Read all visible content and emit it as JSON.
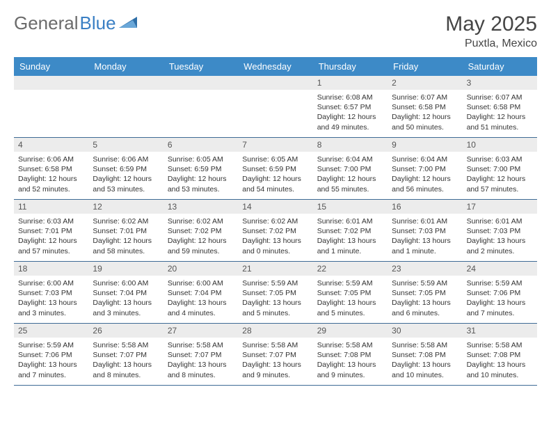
{
  "brand": {
    "part1": "General",
    "part2": "Blue"
  },
  "title": "May 2025",
  "location": "Puxtla, Mexico",
  "colors": {
    "header_bg": "#3d8ac7",
    "header_text": "#ffffff",
    "daynum_bg": "#ececec",
    "row_divider": "#3d6a95",
    "brand_gray": "#6b6b6b",
    "brand_blue": "#3a7fc4"
  },
  "day_names": [
    "Sunday",
    "Monday",
    "Tuesday",
    "Wednesday",
    "Thursday",
    "Friday",
    "Saturday"
  ],
  "weeks": [
    [
      {
        "day": "",
        "sunrise": "",
        "sunset": "",
        "daylight": ""
      },
      {
        "day": "",
        "sunrise": "",
        "sunset": "",
        "daylight": ""
      },
      {
        "day": "",
        "sunrise": "",
        "sunset": "",
        "daylight": ""
      },
      {
        "day": "",
        "sunrise": "",
        "sunset": "",
        "daylight": ""
      },
      {
        "day": "1",
        "sunrise": "Sunrise: 6:08 AM",
        "sunset": "Sunset: 6:57 PM",
        "daylight": "Daylight: 12 hours and 49 minutes."
      },
      {
        "day": "2",
        "sunrise": "Sunrise: 6:07 AM",
        "sunset": "Sunset: 6:58 PM",
        "daylight": "Daylight: 12 hours and 50 minutes."
      },
      {
        "day": "3",
        "sunrise": "Sunrise: 6:07 AM",
        "sunset": "Sunset: 6:58 PM",
        "daylight": "Daylight: 12 hours and 51 minutes."
      }
    ],
    [
      {
        "day": "4",
        "sunrise": "Sunrise: 6:06 AM",
        "sunset": "Sunset: 6:58 PM",
        "daylight": "Daylight: 12 hours and 52 minutes."
      },
      {
        "day": "5",
        "sunrise": "Sunrise: 6:06 AM",
        "sunset": "Sunset: 6:59 PM",
        "daylight": "Daylight: 12 hours and 53 minutes."
      },
      {
        "day": "6",
        "sunrise": "Sunrise: 6:05 AM",
        "sunset": "Sunset: 6:59 PM",
        "daylight": "Daylight: 12 hours and 53 minutes."
      },
      {
        "day": "7",
        "sunrise": "Sunrise: 6:05 AM",
        "sunset": "Sunset: 6:59 PM",
        "daylight": "Daylight: 12 hours and 54 minutes."
      },
      {
        "day": "8",
        "sunrise": "Sunrise: 6:04 AM",
        "sunset": "Sunset: 7:00 PM",
        "daylight": "Daylight: 12 hours and 55 minutes."
      },
      {
        "day": "9",
        "sunrise": "Sunrise: 6:04 AM",
        "sunset": "Sunset: 7:00 PM",
        "daylight": "Daylight: 12 hours and 56 minutes."
      },
      {
        "day": "10",
        "sunrise": "Sunrise: 6:03 AM",
        "sunset": "Sunset: 7:00 PM",
        "daylight": "Daylight: 12 hours and 57 minutes."
      }
    ],
    [
      {
        "day": "11",
        "sunrise": "Sunrise: 6:03 AM",
        "sunset": "Sunset: 7:01 PM",
        "daylight": "Daylight: 12 hours and 57 minutes."
      },
      {
        "day": "12",
        "sunrise": "Sunrise: 6:02 AM",
        "sunset": "Sunset: 7:01 PM",
        "daylight": "Daylight: 12 hours and 58 minutes."
      },
      {
        "day": "13",
        "sunrise": "Sunrise: 6:02 AM",
        "sunset": "Sunset: 7:02 PM",
        "daylight": "Daylight: 12 hours and 59 minutes."
      },
      {
        "day": "14",
        "sunrise": "Sunrise: 6:02 AM",
        "sunset": "Sunset: 7:02 PM",
        "daylight": "Daylight: 13 hours and 0 minutes."
      },
      {
        "day": "15",
        "sunrise": "Sunrise: 6:01 AM",
        "sunset": "Sunset: 7:02 PM",
        "daylight": "Daylight: 13 hours and 1 minute."
      },
      {
        "day": "16",
        "sunrise": "Sunrise: 6:01 AM",
        "sunset": "Sunset: 7:03 PM",
        "daylight": "Daylight: 13 hours and 1 minute."
      },
      {
        "day": "17",
        "sunrise": "Sunrise: 6:01 AM",
        "sunset": "Sunset: 7:03 PM",
        "daylight": "Daylight: 13 hours and 2 minutes."
      }
    ],
    [
      {
        "day": "18",
        "sunrise": "Sunrise: 6:00 AM",
        "sunset": "Sunset: 7:03 PM",
        "daylight": "Daylight: 13 hours and 3 minutes."
      },
      {
        "day": "19",
        "sunrise": "Sunrise: 6:00 AM",
        "sunset": "Sunset: 7:04 PM",
        "daylight": "Daylight: 13 hours and 3 minutes."
      },
      {
        "day": "20",
        "sunrise": "Sunrise: 6:00 AM",
        "sunset": "Sunset: 7:04 PM",
        "daylight": "Daylight: 13 hours and 4 minutes."
      },
      {
        "day": "21",
        "sunrise": "Sunrise: 5:59 AM",
        "sunset": "Sunset: 7:05 PM",
        "daylight": "Daylight: 13 hours and 5 minutes."
      },
      {
        "day": "22",
        "sunrise": "Sunrise: 5:59 AM",
        "sunset": "Sunset: 7:05 PM",
        "daylight": "Daylight: 13 hours and 5 minutes."
      },
      {
        "day": "23",
        "sunrise": "Sunrise: 5:59 AM",
        "sunset": "Sunset: 7:05 PM",
        "daylight": "Daylight: 13 hours and 6 minutes."
      },
      {
        "day": "24",
        "sunrise": "Sunrise: 5:59 AM",
        "sunset": "Sunset: 7:06 PM",
        "daylight": "Daylight: 13 hours and 7 minutes."
      }
    ],
    [
      {
        "day": "25",
        "sunrise": "Sunrise: 5:59 AM",
        "sunset": "Sunset: 7:06 PM",
        "daylight": "Daylight: 13 hours and 7 minutes."
      },
      {
        "day": "26",
        "sunrise": "Sunrise: 5:58 AM",
        "sunset": "Sunset: 7:07 PM",
        "daylight": "Daylight: 13 hours and 8 minutes."
      },
      {
        "day": "27",
        "sunrise": "Sunrise: 5:58 AM",
        "sunset": "Sunset: 7:07 PM",
        "daylight": "Daylight: 13 hours and 8 minutes."
      },
      {
        "day": "28",
        "sunrise": "Sunrise: 5:58 AM",
        "sunset": "Sunset: 7:07 PM",
        "daylight": "Daylight: 13 hours and 9 minutes."
      },
      {
        "day": "29",
        "sunrise": "Sunrise: 5:58 AM",
        "sunset": "Sunset: 7:08 PM",
        "daylight": "Daylight: 13 hours and 9 minutes."
      },
      {
        "day": "30",
        "sunrise": "Sunrise: 5:58 AM",
        "sunset": "Sunset: 7:08 PM",
        "daylight": "Daylight: 13 hours and 10 minutes."
      },
      {
        "day": "31",
        "sunrise": "Sunrise: 5:58 AM",
        "sunset": "Sunset: 7:08 PM",
        "daylight": "Daylight: 13 hours and 10 minutes."
      }
    ]
  ]
}
